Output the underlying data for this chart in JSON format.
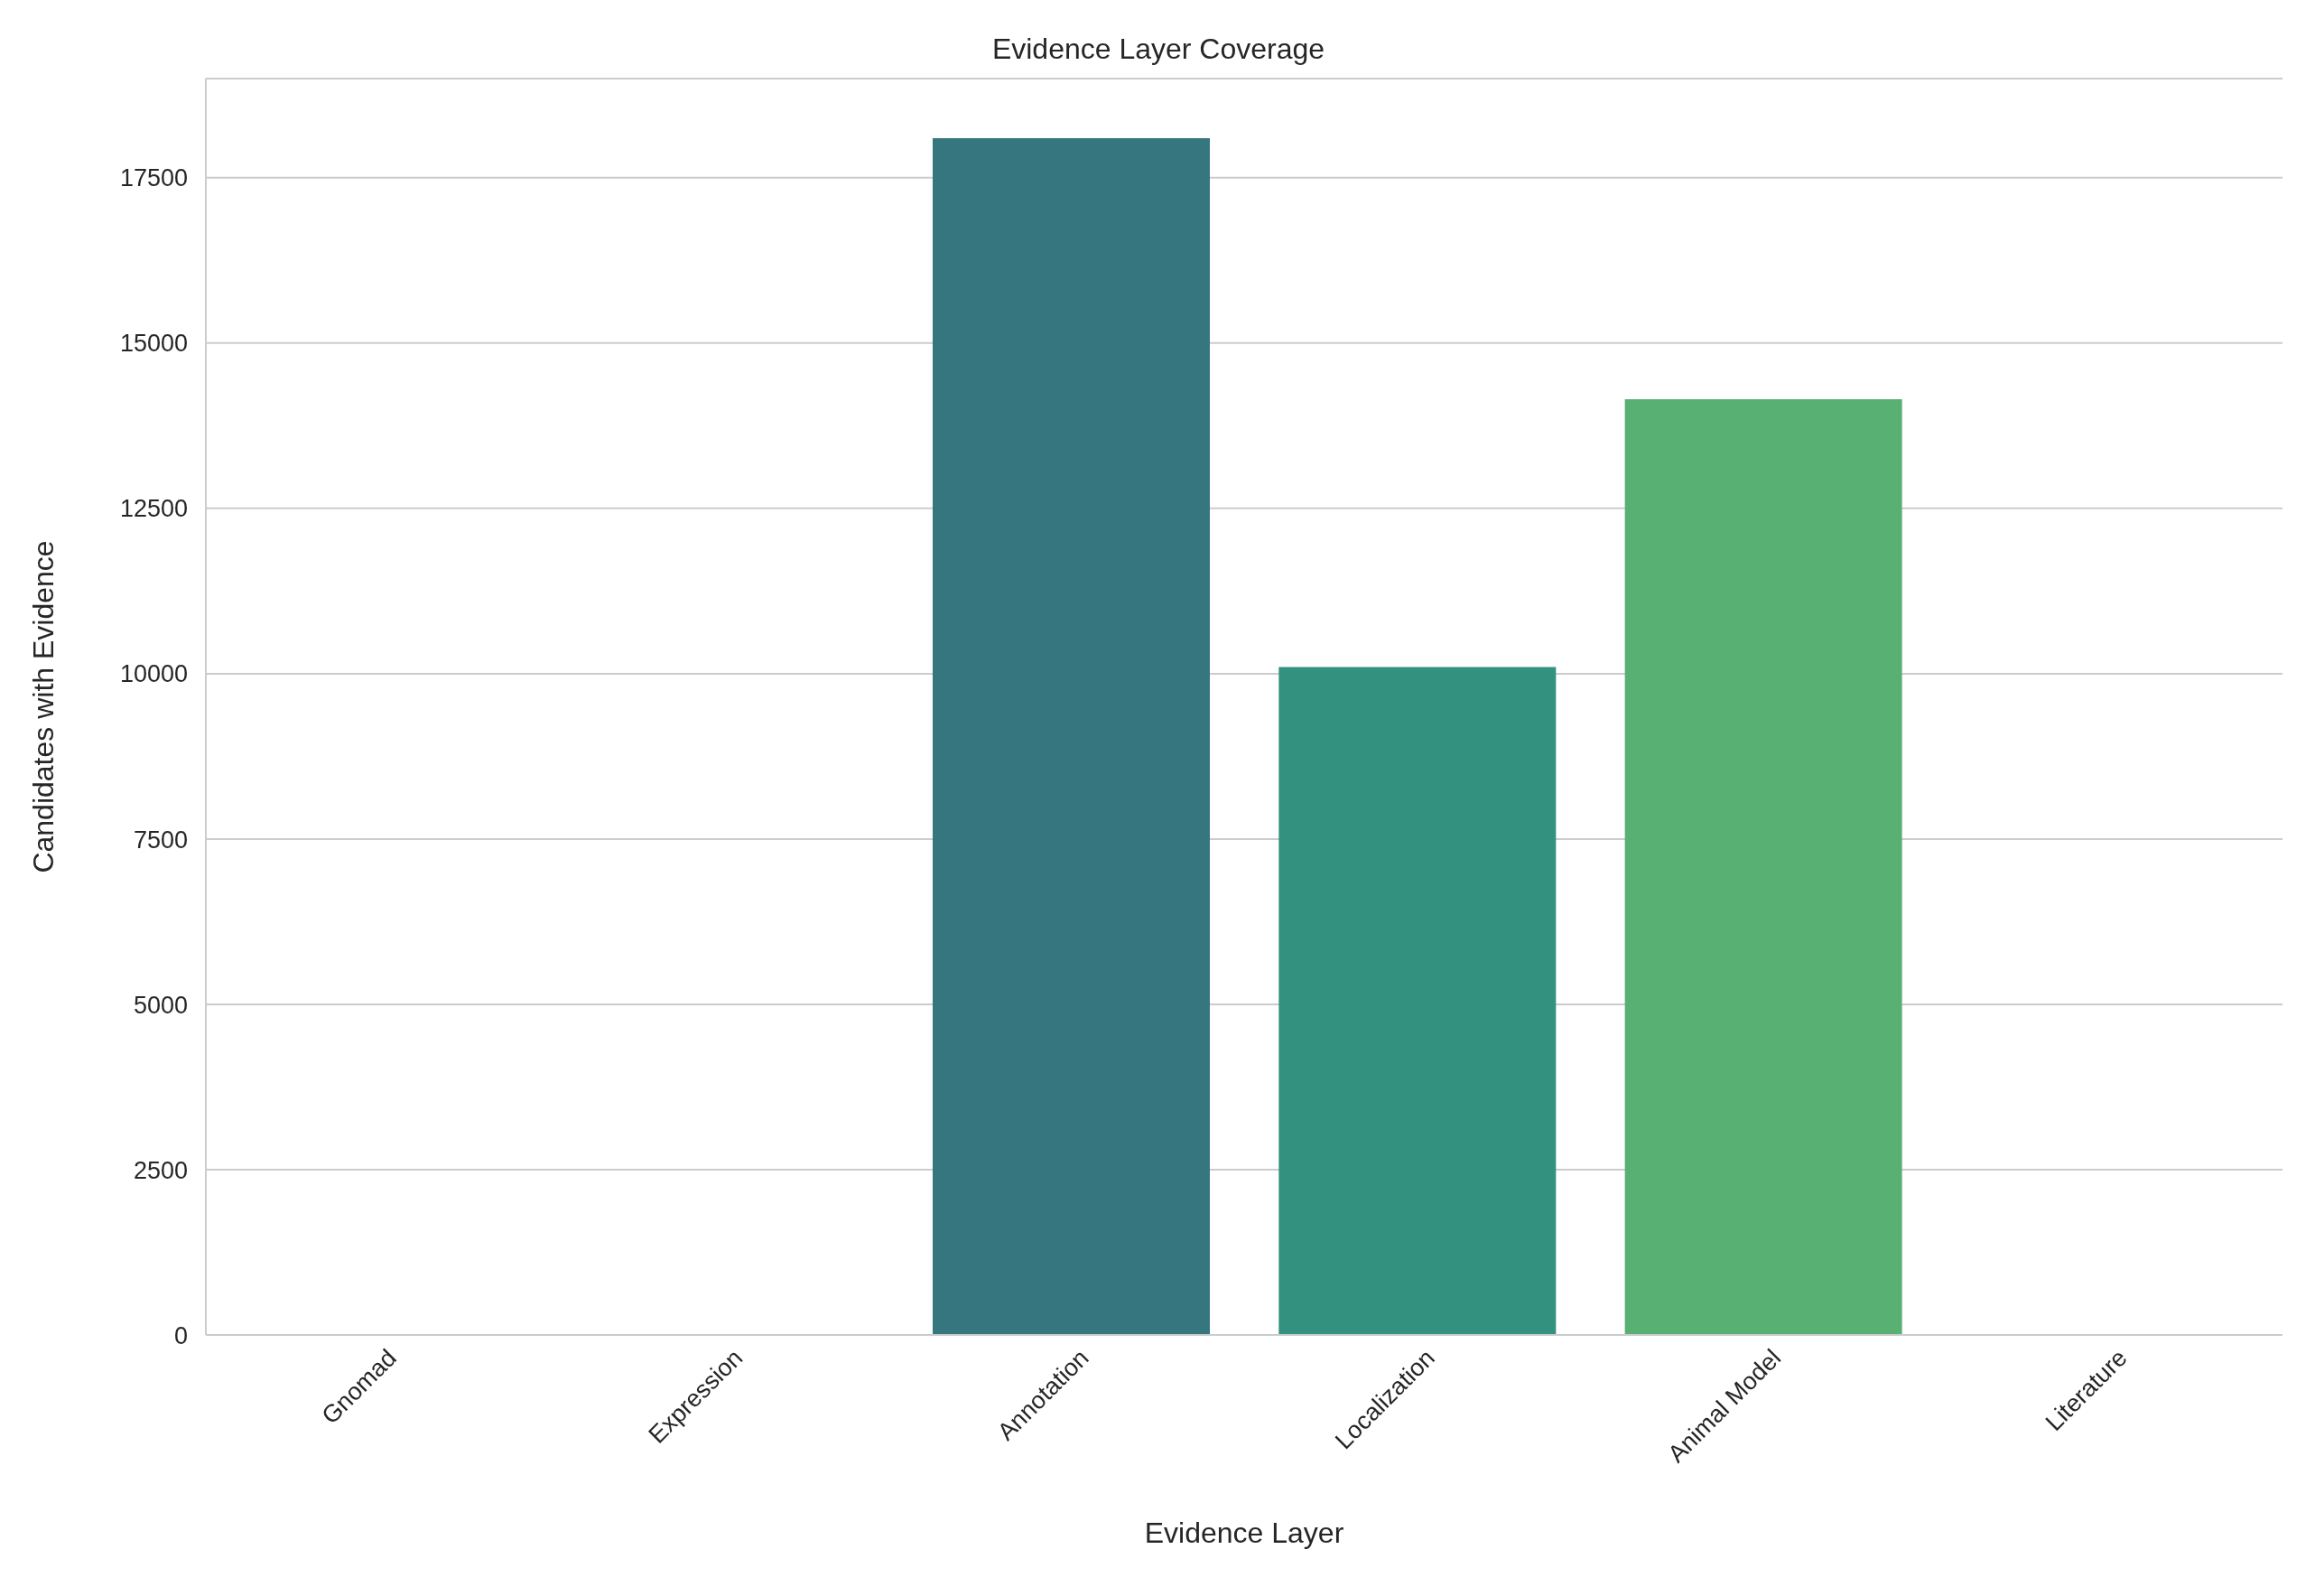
{
  "chart_data": {
    "type": "bar",
    "title": "Evidence Layer Coverage",
    "xlabel": "Evidence Layer",
    "ylabel": "Candidates with Evidence",
    "categories": [
      "Gnomad",
      "Expression",
      "Annotation",
      "Localization",
      "Animal Model",
      "Literature"
    ],
    "values": [
      0,
      0,
      18100,
      10100,
      14150,
      0
    ],
    "colors": [
      "#482878",
      "#3e4989",
      "#35767f",
      "#32927f",
      "#58b073",
      "#a8db34"
    ],
    "ylim": [
      0,
      19000
    ],
    "yticks": [
      0,
      2500,
      5000,
      7500,
      10000,
      12500,
      15000,
      17500
    ],
    "grid": "y"
  }
}
